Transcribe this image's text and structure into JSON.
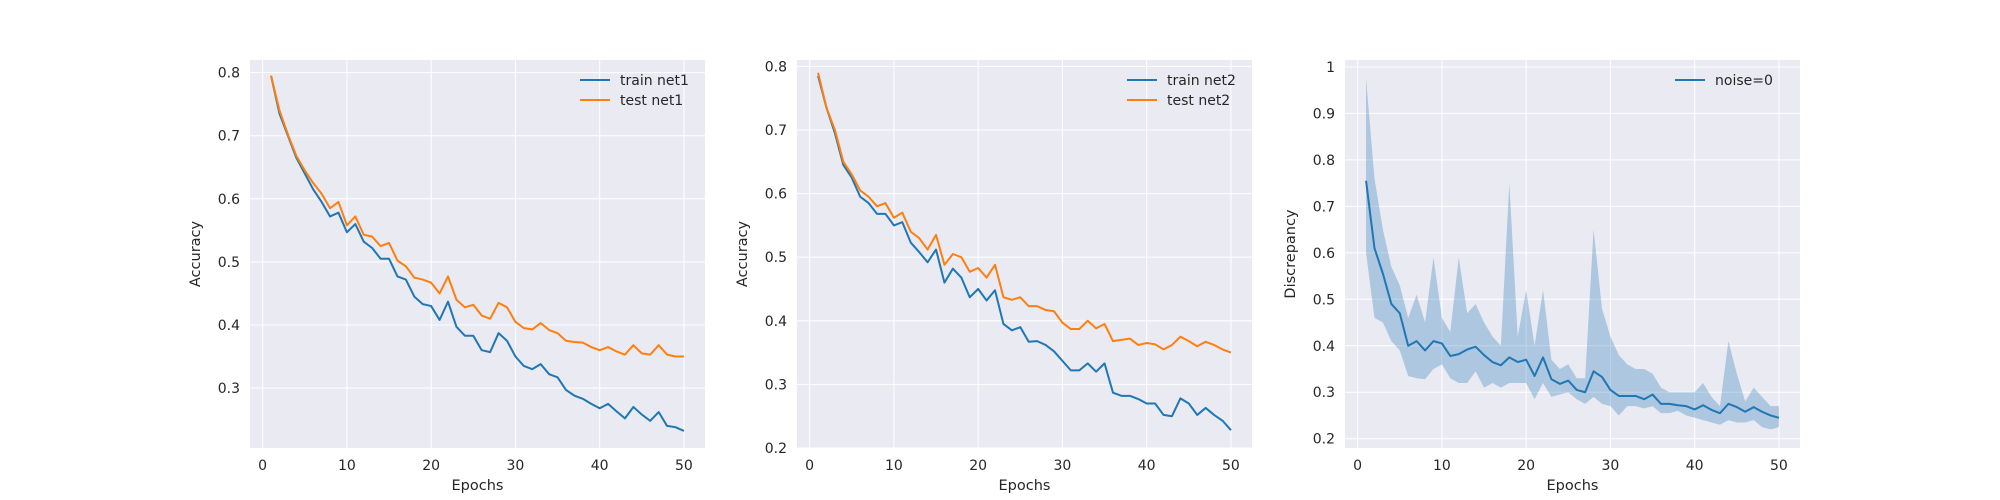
{
  "colors": {
    "train": "#1f77b4",
    "test": "#ff7f0e",
    "band": "#1f77b4",
    "plot_bg": "#eaeaf2",
    "grid": "#ffffff"
  },
  "chart_data": [
    {
      "type": "line",
      "title": "",
      "xlabel": "Epochs",
      "ylabel": "Accuracy",
      "xlim": [
        -1.5,
        52.5
      ],
      "ylim": [
        0.205,
        0.82
      ],
      "xticks": [
        0,
        10,
        20,
        30,
        40,
        50
      ],
      "yticks": [
        0.3,
        0.4,
        0.5,
        0.6,
        0.7,
        0.8
      ],
      "grid": true,
      "legend_position": "top-right",
      "x": [
        1,
        2,
        3,
        4,
        5,
        6,
        7,
        8,
        9,
        10,
        11,
        12,
        13,
        14,
        15,
        16,
        17,
        18,
        19,
        20,
        21,
        22,
        23,
        24,
        25,
        26,
        27,
        28,
        29,
        30,
        31,
        32,
        33,
        34,
        35,
        36,
        37,
        38,
        39,
        40,
        41,
        42,
        43,
        44,
        45,
        46,
        47,
        48,
        49,
        50
      ],
      "series": [
        {
          "name": "train net1",
          "color_key": "train",
          "values": [
            0.795,
            0.735,
            0.7,
            0.665,
            0.64,
            0.615,
            0.595,
            0.572,
            0.578,
            0.547,
            0.56,
            0.532,
            0.522,
            0.505,
            0.505,
            0.477,
            0.472,
            0.445,
            0.433,
            0.43,
            0.408,
            0.437,
            0.397,
            0.383,
            0.383,
            0.36,
            0.357,
            0.387,
            0.375,
            0.35,
            0.335,
            0.33,
            0.338,
            0.322,
            0.317,
            0.297,
            0.288,
            0.283,
            0.275,
            0.268,
            0.275,
            0.263,
            0.252,
            0.27,
            0.258,
            0.248,
            0.262,
            0.24,
            0.238,
            0.232
          ]
        },
        {
          "name": "test net1",
          "color_key": "test",
          "values": [
            0.795,
            0.74,
            0.702,
            0.668,
            0.645,
            0.625,
            0.608,
            0.585,
            0.595,
            0.558,
            0.572,
            0.543,
            0.54,
            0.525,
            0.53,
            0.502,
            0.493,
            0.475,
            0.472,
            0.467,
            0.45,
            0.477,
            0.44,
            0.428,
            0.432,
            0.415,
            0.41,
            0.435,
            0.428,
            0.405,
            0.395,
            0.393,
            0.403,
            0.392,
            0.387,
            0.375,
            0.373,
            0.372,
            0.365,
            0.36,
            0.365,
            0.358,
            0.353,
            0.368,
            0.355,
            0.353,
            0.368,
            0.353,
            0.35,
            0.35
          ]
        }
      ]
    },
    {
      "type": "line",
      "title": "",
      "xlabel": "Epochs",
      "ylabel": "Accuracy",
      "xlim": [
        -1.5,
        52.5
      ],
      "ylim": [
        0.2,
        0.81
      ],
      "xticks": [
        0,
        10,
        20,
        30,
        40,
        50
      ],
      "yticks": [
        0.2,
        0.3,
        0.4,
        0.5,
        0.6,
        0.7,
        0.8
      ],
      "grid": true,
      "legend_position": "top-right",
      "x": [
        1,
        2,
        3,
        4,
        5,
        6,
        7,
        8,
        9,
        10,
        11,
        12,
        13,
        14,
        15,
        16,
        17,
        18,
        19,
        20,
        21,
        22,
        23,
        24,
        25,
        26,
        27,
        28,
        29,
        30,
        31,
        32,
        33,
        34,
        35,
        36,
        37,
        38,
        39,
        40,
        41,
        42,
        43,
        44,
        45,
        46,
        47,
        48,
        49,
        50
      ],
      "series": [
        {
          "name": "train net2",
          "color_key": "train",
          "values": [
            0.785,
            0.735,
            0.695,
            0.645,
            0.625,
            0.595,
            0.585,
            0.568,
            0.568,
            0.55,
            0.555,
            0.523,
            0.508,
            0.492,
            0.512,
            0.46,
            0.482,
            0.468,
            0.437,
            0.45,
            0.432,
            0.448,
            0.395,
            0.385,
            0.39,
            0.367,
            0.368,
            0.362,
            0.352,
            0.337,
            0.322,
            0.322,
            0.333,
            0.32,
            0.333,
            0.287,
            0.282,
            0.282,
            0.277,
            0.27,
            0.27,
            0.252,
            0.25,
            0.278,
            0.27,
            0.252,
            0.263,
            0.252,
            0.243,
            0.228
          ]
        },
        {
          "name": "test net2",
          "color_key": "test",
          "values": [
            0.79,
            0.735,
            0.7,
            0.65,
            0.63,
            0.605,
            0.595,
            0.58,
            0.585,
            0.562,
            0.57,
            0.54,
            0.53,
            0.512,
            0.535,
            0.488,
            0.505,
            0.5,
            0.477,
            0.483,
            0.468,
            0.488,
            0.437,
            0.433,
            0.437,
            0.423,
            0.423,
            0.417,
            0.415,
            0.397,
            0.387,
            0.387,
            0.4,
            0.388,
            0.395,
            0.368,
            0.37,
            0.372,
            0.362,
            0.365,
            0.363,
            0.355,
            0.362,
            0.375,
            0.368,
            0.36,
            0.367,
            0.362,
            0.355,
            0.35
          ]
        }
      ]
    },
    {
      "type": "line",
      "title": "",
      "xlabel": "Epochs",
      "ylabel": "Discrepancy",
      "xlim": [
        -1.5,
        52.5
      ],
      "ylim": [
        0.18,
        1.015
      ],
      "xticks": [
        0,
        10,
        20,
        30,
        40,
        50
      ],
      "yticks": [
        0.2,
        0.3,
        0.4,
        0.5,
        0.6,
        0.7,
        0.8,
        0.9,
        1.0
      ],
      "grid": true,
      "legend_position": "top-right",
      "x": [
        1,
        2,
        3,
        4,
        5,
        6,
        7,
        8,
        9,
        10,
        11,
        12,
        13,
        14,
        15,
        16,
        17,
        18,
        19,
        20,
        21,
        22,
        23,
        24,
        25,
        26,
        27,
        28,
        29,
        30,
        31,
        32,
        33,
        34,
        35,
        36,
        37,
        38,
        39,
        40,
        41,
        42,
        43,
        44,
        45,
        46,
        47,
        48,
        49,
        50
      ],
      "series": [
        {
          "name": "noise=0",
          "color_key": "train",
          "values": [
            0.755,
            0.61,
            0.555,
            0.49,
            0.47,
            0.4,
            0.41,
            0.39,
            0.41,
            0.405,
            0.378,
            0.382,
            0.392,
            0.398,
            0.38,
            0.365,
            0.358,
            0.375,
            0.365,
            0.37,
            0.335,
            0.375,
            0.328,
            0.318,
            0.325,
            0.305,
            0.3,
            0.345,
            0.333,
            0.305,
            0.292,
            0.292,
            0.292,
            0.285,
            0.295,
            0.275,
            0.275,
            0.272,
            0.27,
            0.263,
            0.272,
            0.262,
            0.255,
            0.275,
            0.268,
            0.258,
            0.268,
            0.258,
            0.25,
            0.245
          ],
          "band_lower": [
            0.6,
            0.46,
            0.45,
            0.41,
            0.39,
            0.335,
            0.33,
            0.328,
            0.35,
            0.36,
            0.33,
            0.32,
            0.32,
            0.345,
            0.31,
            0.32,
            0.31,
            0.32,
            0.32,
            0.32,
            0.285,
            0.32,
            0.29,
            0.295,
            0.3,
            0.285,
            0.275,
            0.29,
            0.275,
            0.27,
            0.25,
            0.27,
            0.27,
            0.265,
            0.27,
            0.255,
            0.255,
            0.26,
            0.25,
            0.245,
            0.24,
            0.235,
            0.23,
            0.24,
            0.235,
            0.235,
            0.24,
            0.225,
            0.22,
            0.225
          ],
          "band_upper": [
            0.975,
            0.76,
            0.65,
            0.57,
            0.53,
            0.46,
            0.51,
            0.45,
            0.59,
            0.46,
            0.43,
            0.59,
            0.47,
            0.49,
            0.45,
            0.42,
            0.4,
            0.75,
            0.42,
            0.52,
            0.4,
            0.52,
            0.37,
            0.35,
            0.36,
            0.33,
            0.33,
            0.65,
            0.48,
            0.42,
            0.38,
            0.36,
            0.35,
            0.35,
            0.34,
            0.31,
            0.3,
            0.3,
            0.3,
            0.3,
            0.32,
            0.29,
            0.27,
            0.41,
            0.34,
            0.28,
            0.31,
            0.29,
            0.27,
            0.27
          ]
        }
      ]
    }
  ]
}
